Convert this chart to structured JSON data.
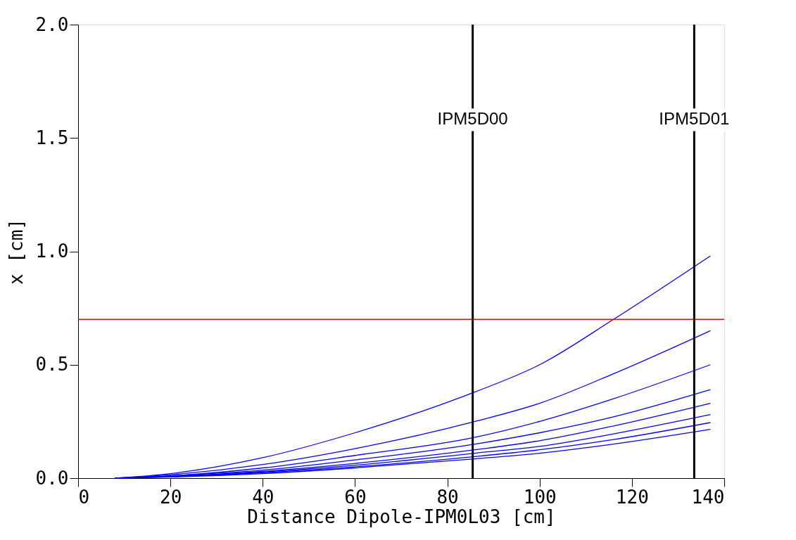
{
  "chart_data": {
    "type": "line",
    "xlabel": "Distance Dipole-IPM0L03 [cm]",
    "ylabel": "x [cm]",
    "x": [
      8,
      20,
      40,
      60,
      86,
      100,
      116,
      137
    ],
    "series": [
      {
        "color": "#0000ff",
        "values": [
          0,
          0.02,
          0.09,
          0.2,
          0.38,
          0.5,
          0.7,
          0.98
        ]
      },
      {
        "color": "#0000ff",
        "values": [
          0,
          0.015,
          0.06,
          0.13,
          0.25,
          0.33,
          0.46,
          0.65
        ]
      },
      {
        "color": "#0000ff",
        "values": [
          0,
          0.01,
          0.045,
          0.1,
          0.18,
          0.25,
          0.35,
          0.5
        ]
      },
      {
        "color": "#0000ff",
        "values": [
          0,
          0.01,
          0.035,
          0.08,
          0.15,
          0.2,
          0.27,
          0.39
        ]
      },
      {
        "color": "#0000ff",
        "values": [
          0,
          0.008,
          0.03,
          0.065,
          0.125,
          0.165,
          0.23,
          0.33
        ]
      },
      {
        "color": "#0000ff",
        "values": [
          0,
          0.007,
          0.027,
          0.057,
          0.11,
          0.14,
          0.195,
          0.28
        ]
      },
      {
        "color": "#0000ff",
        "values": [
          0,
          0.006,
          0.024,
          0.05,
          0.095,
          0.125,
          0.17,
          0.245
        ]
      },
      {
        "color": "#0000ff",
        "values": [
          0,
          0.005,
          0.02,
          0.045,
          0.085,
          0.11,
          0.15,
          0.215
        ]
      }
    ],
    "xlim": [
      0,
      140
    ],
    "xticks": [
      0,
      20,
      40,
      60,
      80,
      100,
      120,
      140
    ],
    "ylim": [
      0,
      2.0
    ],
    "yticks": [
      {
        "value": 0,
        "label": "0.0"
      },
      {
        "value": 0.5,
        "label": "0.5"
      },
      {
        "value": 1.0,
        "label": "1.0"
      },
      {
        "value": 1.5,
        "label": "1.5"
      },
      {
        "value": 2.0,
        "label": "2.0"
      }
    ],
    "ref_lines": [
      {
        "axis": "y",
        "value": 0.7,
        "color": "#ff0000"
      },
      {
        "axis": "x",
        "value": 85.5,
        "label": "IPM5D00",
        "color": "#000000"
      },
      {
        "axis": "x",
        "value": 133.5,
        "label": "IPM5D01",
        "color": "#000000"
      }
    ],
    "grid": false,
    "marker": "none",
    "line_style": "solid"
  }
}
